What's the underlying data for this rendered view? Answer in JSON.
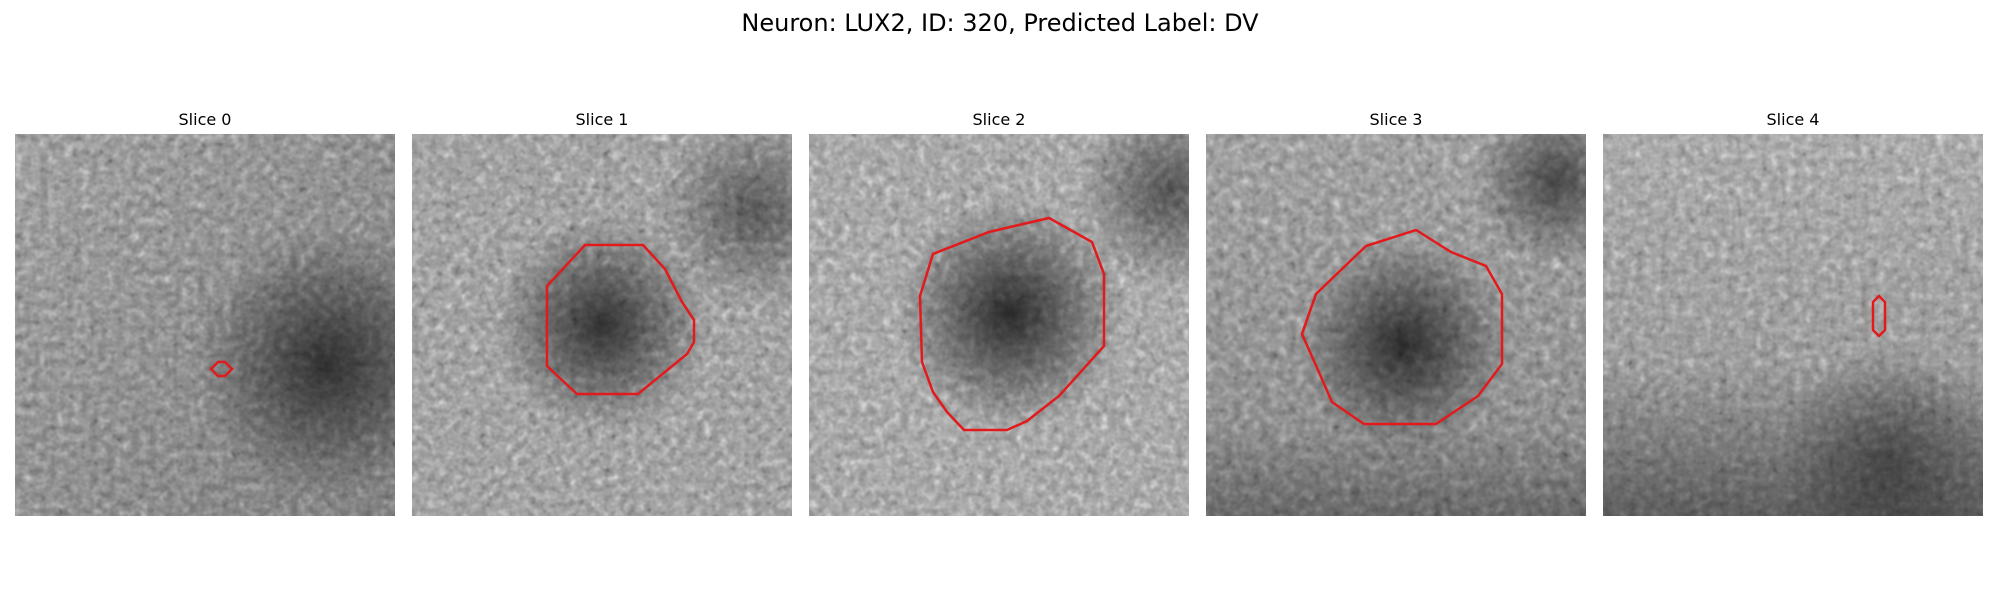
{
  "figure": {
    "title": "Neuron: LUX2, ID: 320, Predicted Label: DV"
  },
  "panels": [
    {
      "title": "Slice 0",
      "roi": "tiny"
    },
    {
      "title": "Slice 1",
      "roi": "large"
    },
    {
      "title": "Slice 2",
      "roi": "large"
    },
    {
      "title": "Slice 3",
      "roi": "large"
    },
    {
      "title": "Slice 4",
      "roi": "tiny"
    }
  ],
  "colors": {
    "contour": "#e31a1c",
    "background": "#ffffff"
  }
}
